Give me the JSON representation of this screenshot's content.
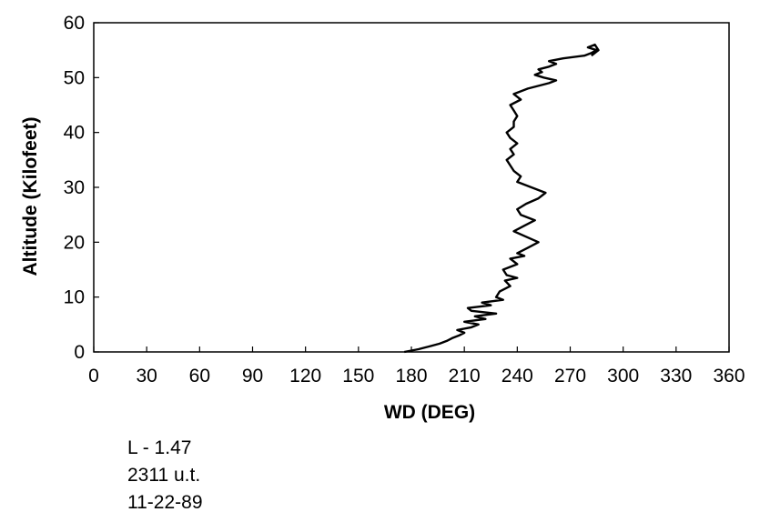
{
  "chart_data": {
    "type": "line",
    "title": "",
    "xlabel": "WD (DEG)",
    "ylabel": "Altitude (Kilofeet)",
    "xlim": [
      0,
      360
    ],
    "ylim": [
      0,
      60
    ],
    "x_ticks": [
      "0",
      "30",
      "60",
      "90",
      "120",
      "150",
      "180",
      "210",
      "240",
      "270",
      "300",
      "330",
      "360"
    ],
    "y_ticks": [
      "0",
      "10",
      "20",
      "30",
      "40",
      "50",
      "60"
    ],
    "grid": false,
    "legend": "none",
    "line_color": "#000000",
    "series": [
      {
        "x": [
          176,
          184,
          190,
          196,
          200,
          203,
          207,
          210,
          206,
          214,
          218,
          210,
          222,
          216,
          228,
          214,
          212,
          225,
          220,
          232,
          228,
          230,
          236,
          233,
          240,
          234,
          232,
          240,
          236,
          244,
          240,
          246,
          252,
          245,
          238,
          244,
          250,
          242,
          240,
          245,
          252,
          256,
          248,
          240,
          242,
          238,
          236,
          234,
          238,
          236,
          240,
          236,
          234,
          238,
          238,
          240,
          238,
          236,
          242,
          240,
          238,
          246,
          252,
          258,
          262,
          255,
          250,
          254,
          252,
          258,
          262,
          258,
          266,
          278,
          282,
          285,
          280,
          284,
          286,
          282
        ],
        "y": [
          0,
          0.5,
          1,
          1.5,
          2,
          2.5,
          3,
          3.5,
          4,
          4.5,
          5,
          5.5,
          6,
          6.5,
          7,
          7.5,
          8,
          8.5,
          9,
          9.5,
          10,
          11,
          12,
          13,
          13.5,
          14,
          15,
          16,
          17,
          17.5,
          18,
          19,
          20,
          21,
          22,
          23,
          24,
          25,
          26,
          27,
          28,
          29,
          30,
          31,
          32,
          33,
          34,
          35,
          36,
          37,
          38,
          39,
          40,
          41,
          42,
          43,
          44,
          45,
          46,
          46.5,
          47,
          48,
          48.5,
          49,
          49.5,
          50,
          50.5,
          51,
          51.5,
          52,
          52.5,
          53,
          53.5,
          54,
          54.5,
          55,
          55.5,
          56,
          55,
          54
        ]
      }
    ]
  },
  "notes": {
    "line1": "L - 1.47",
    "line2": "2311 u.t.",
    "line3": "11-22-89"
  }
}
